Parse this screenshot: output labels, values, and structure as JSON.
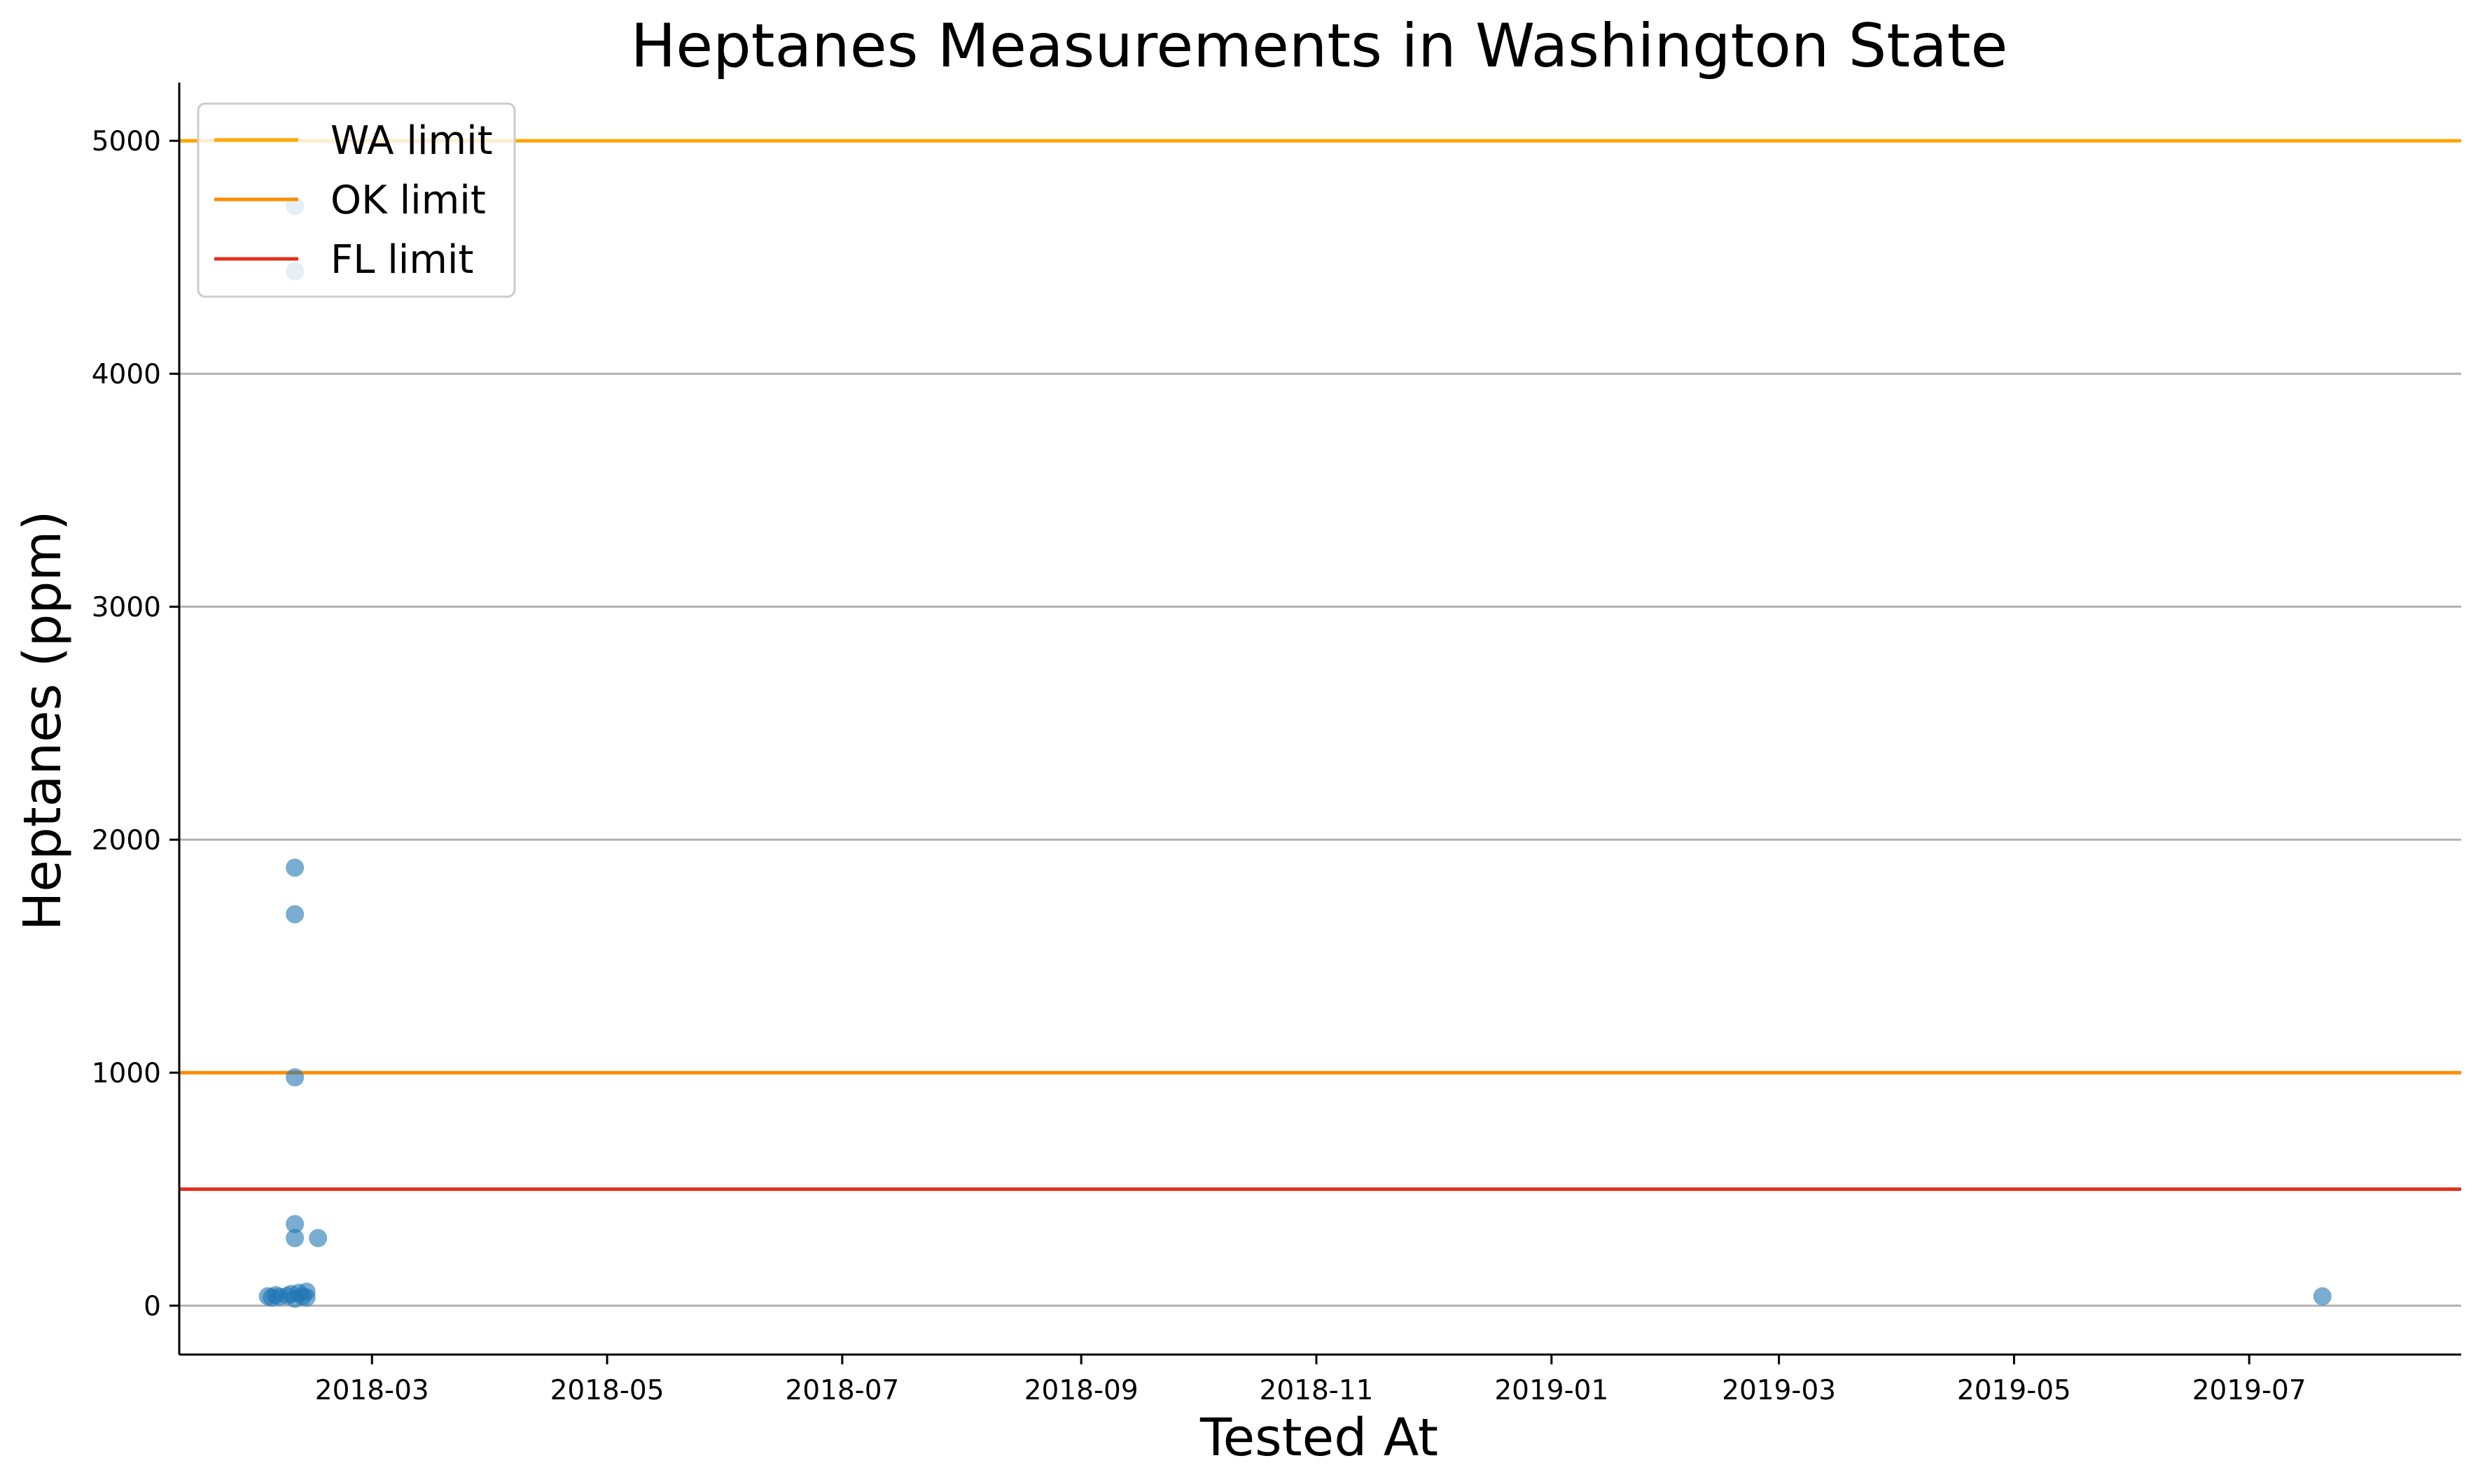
{
  "chart_data": {
    "type": "scatter",
    "title": "Heptanes Measurements in Washington State",
    "xlabel": "Tested At",
    "ylabel": "Heptanes (ppm)",
    "xlim": [
      "2018-01-10",
      "2019-08-25"
    ],
    "ylim": [
      -210,
      5250
    ],
    "x_ticks": [
      "2018-03",
      "2018-05",
      "2018-07",
      "2018-09",
      "2018-11",
      "2019-01",
      "2019-03",
      "2019-05",
      "2019-07"
    ],
    "y_ticks": [
      0,
      1000,
      2000,
      3000,
      4000,
      5000
    ],
    "grid": "horizontal",
    "point_color": "#1f77b4",
    "points": [
      {
        "x": "2018-02-02",
        "y": 40
      },
      {
        "x": "2018-02-03",
        "y": 35
      },
      {
        "x": "2018-02-04",
        "y": 45
      },
      {
        "x": "2018-02-05",
        "y": 38
      },
      {
        "x": "2018-02-07",
        "y": 42
      },
      {
        "x": "2018-02-08",
        "y": 50
      },
      {
        "x": "2018-02-09",
        "y": 30
      },
      {
        "x": "2018-02-10",
        "y": 55
      },
      {
        "x": "2018-02-11",
        "y": 40
      },
      {
        "x": "2018-02-12",
        "y": 35
      },
      {
        "x": "2018-02-12",
        "y": 60
      },
      {
        "x": "2018-02-09",
        "y": 4720
      },
      {
        "x": "2018-02-09",
        "y": 4440
      },
      {
        "x": "2018-02-09",
        "y": 1880
      },
      {
        "x": "2018-02-09",
        "y": 1680
      },
      {
        "x": "2018-02-09",
        "y": 980
      },
      {
        "x": "2018-02-09",
        "y": 350
      },
      {
        "x": "2018-02-09",
        "y": 290
      },
      {
        "x": "2018-02-15",
        "y": 290
      },
      {
        "x": "2019-07-20",
        "y": 40
      }
    ],
    "limits": [
      {
        "name": "WA limit",
        "value": 5000,
        "color": "#ffa500"
      },
      {
        "name": "OK limit",
        "value": 1000,
        "color": "#ff8c00"
      },
      {
        "name": "FL limit",
        "value": 500,
        "color": "#e0301e"
      }
    ],
    "legend_position": "top-left"
  }
}
